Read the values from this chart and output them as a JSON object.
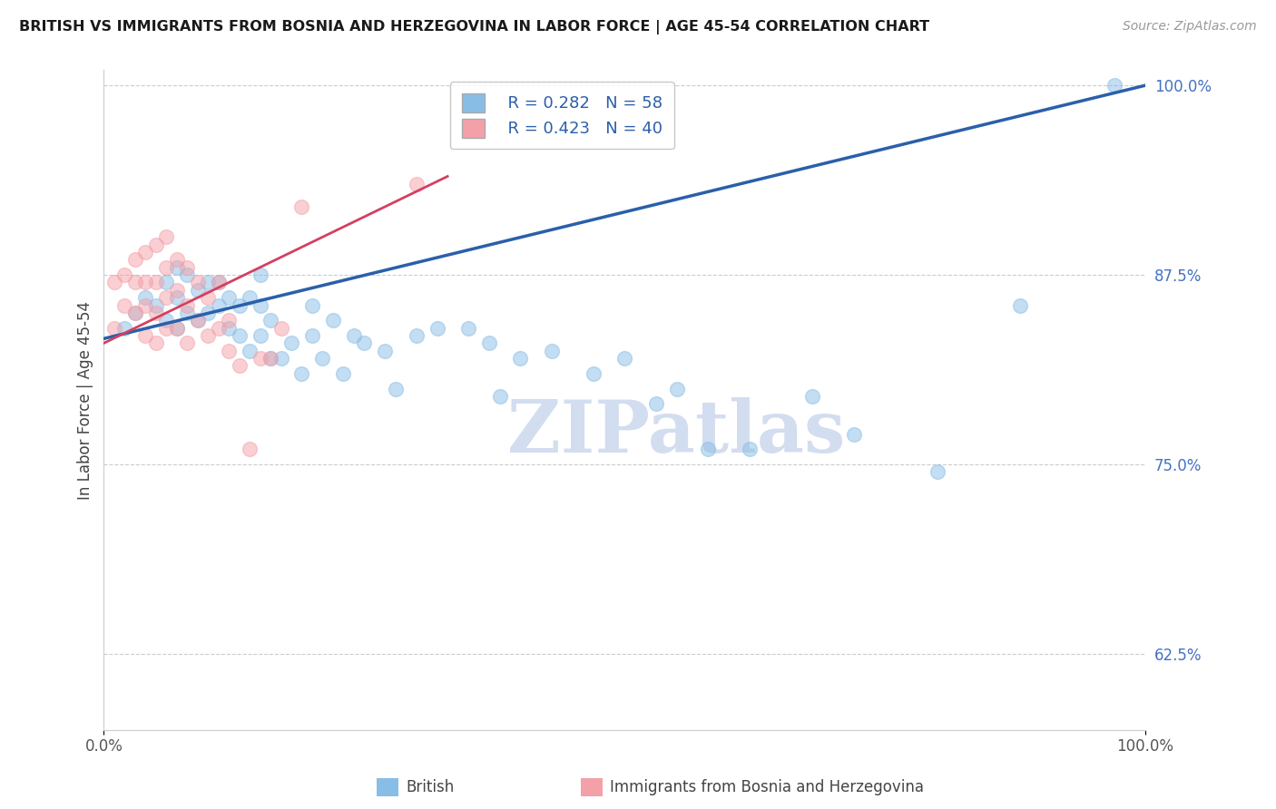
{
  "title": "BRITISH VS IMMIGRANTS FROM BOSNIA AND HERZEGOVINA IN LABOR FORCE | AGE 45-54 CORRELATION CHART",
  "source": "Source: ZipAtlas.com",
  "ylabel": "In Labor Force | Age 45-54",
  "xlim": [
    0.0,
    1.0
  ],
  "ylim": [
    0.575,
    1.01
  ],
  "yticks": [
    0.625,
    0.75,
    0.875,
    1.0
  ],
  "ytick_labels": [
    "62.5%",
    "75.0%",
    "87.5%",
    "100.0%"
  ],
  "xtick_labels": [
    "0.0%",
    "100.0%"
  ],
  "blue_R": 0.282,
  "blue_N": 58,
  "pink_R": 0.423,
  "pink_N": 40,
  "blue_color": "#88bde6",
  "pink_color": "#f4a0a8",
  "trend_blue": "#2b5faa",
  "trend_pink": "#d44060",
  "watermark_color": "#ccd8ee",
  "blue_x": [
    0.02,
    0.03,
    0.04,
    0.05,
    0.06,
    0.06,
    0.07,
    0.07,
    0.07,
    0.08,
    0.08,
    0.09,
    0.09,
    0.1,
    0.1,
    0.11,
    0.11,
    0.12,
    0.12,
    0.13,
    0.13,
    0.14,
    0.14,
    0.15,
    0.15,
    0.15,
    0.16,
    0.16,
    0.17,
    0.18,
    0.19,
    0.2,
    0.2,
    0.21,
    0.22,
    0.23,
    0.24,
    0.25,
    0.27,
    0.28,
    0.3,
    0.32,
    0.35,
    0.37,
    0.38,
    0.4,
    0.43,
    0.47,
    0.5,
    0.53,
    0.55,
    0.58,
    0.62,
    0.68,
    0.72,
    0.8,
    0.88,
    0.97
  ],
  "blue_y": [
    0.84,
    0.85,
    0.86,
    0.855,
    0.845,
    0.87,
    0.84,
    0.86,
    0.88,
    0.85,
    0.875,
    0.845,
    0.865,
    0.85,
    0.87,
    0.855,
    0.87,
    0.84,
    0.86,
    0.835,
    0.855,
    0.825,
    0.86,
    0.835,
    0.855,
    0.875,
    0.82,
    0.845,
    0.82,
    0.83,
    0.81,
    0.835,
    0.855,
    0.82,
    0.845,
    0.81,
    0.835,
    0.83,
    0.825,
    0.8,
    0.835,
    0.84,
    0.84,
    0.83,
    0.795,
    0.82,
    0.825,
    0.81,
    0.82,
    0.79,
    0.8,
    0.76,
    0.76,
    0.795,
    0.77,
    0.745,
    0.855,
    1.0
  ],
  "pink_x": [
    0.01,
    0.01,
    0.02,
    0.02,
    0.03,
    0.03,
    0.03,
    0.04,
    0.04,
    0.04,
    0.04,
    0.05,
    0.05,
    0.05,
    0.05,
    0.06,
    0.06,
    0.06,
    0.06,
    0.07,
    0.07,
    0.07,
    0.08,
    0.08,
    0.08,
    0.09,
    0.09,
    0.1,
    0.1,
    0.11,
    0.11,
    0.12,
    0.12,
    0.13,
    0.14,
    0.15,
    0.16,
    0.17,
    0.19,
    0.3
  ],
  "pink_y": [
    0.84,
    0.87,
    0.855,
    0.875,
    0.85,
    0.87,
    0.885,
    0.835,
    0.855,
    0.87,
    0.89,
    0.83,
    0.85,
    0.87,
    0.895,
    0.84,
    0.86,
    0.88,
    0.9,
    0.84,
    0.865,
    0.885,
    0.83,
    0.855,
    0.88,
    0.845,
    0.87,
    0.835,
    0.86,
    0.84,
    0.87,
    0.825,
    0.845,
    0.815,
    0.76,
    0.82,
    0.82,
    0.84,
    0.92,
    0.935
  ],
  "blue_trend_x": [
    0.0,
    1.0
  ],
  "blue_trend_y_start": 0.833,
  "blue_trend_y_end": 1.0,
  "pink_trend_x": [
    0.0,
    0.33
  ],
  "pink_trend_y_start": 0.83,
  "pink_trend_y_end": 0.94
}
